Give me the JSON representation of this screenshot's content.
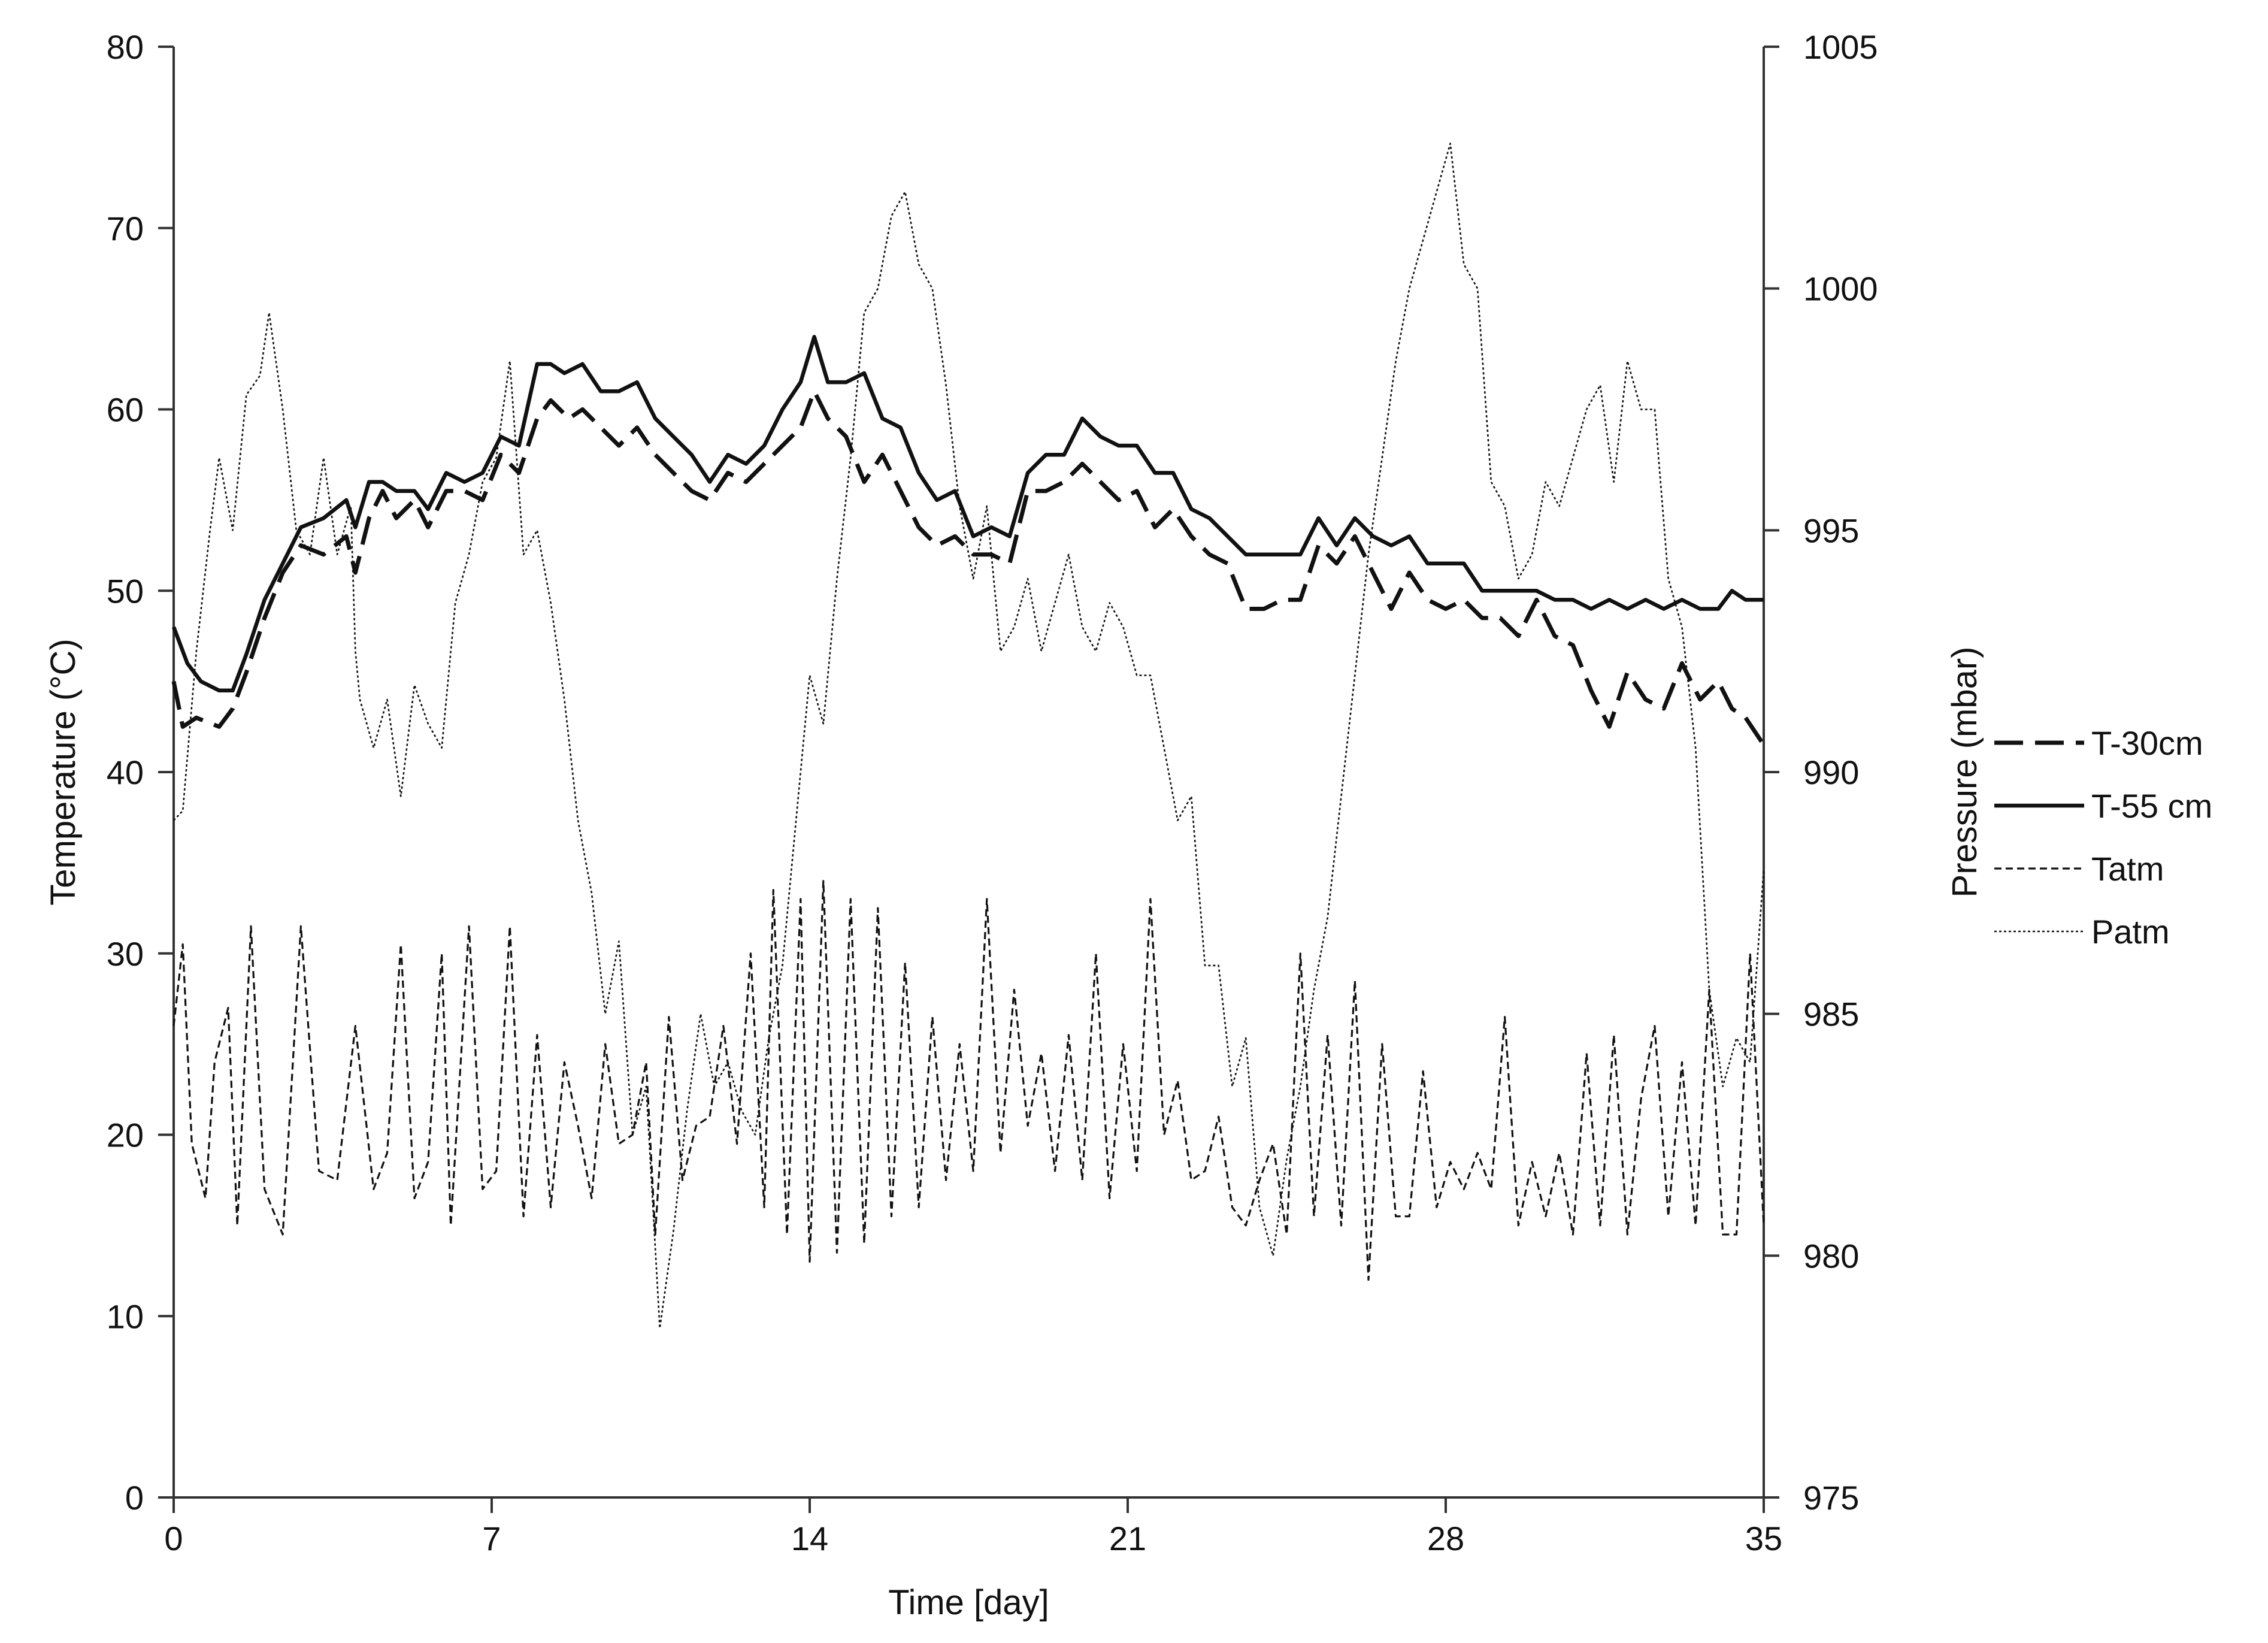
{
  "chart_data": {
    "type": "line",
    "xlabel": "Time [day]",
    "ylabel": "Temperature (°C)",
    "y2label": "Pressure (mbar)",
    "xlim": [
      0,
      35
    ],
    "ylim": [
      0,
      80
    ],
    "y2lim": [
      975,
      1005
    ],
    "x_ticks": [
      0,
      7,
      14,
      21,
      28,
      35
    ],
    "y_ticks": [
      0,
      10,
      20,
      30,
      40,
      50,
      60,
      70,
      80
    ],
    "y2_ticks": [
      975,
      980,
      985,
      990,
      995,
      1000,
      1005
    ],
    "x_tick_labels": [
      "0",
      "7",
      "14",
      "21",
      "28",
      "35"
    ],
    "y_tick_labels": [
      "0",
      "10",
      "20",
      "30",
      "40",
      "50",
      "60",
      "70",
      "80"
    ],
    "y2_tick_labels": [
      "975",
      "980",
      "985",
      "990",
      "995",
      "1000",
      "1005"
    ],
    "grid": false,
    "legend_position": "right",
    "series": [
      {
        "name": "T-30cm",
        "axis": "left",
        "style": "long-dash",
        "x": [
          0,
          0.2,
          0.5,
          1.0,
          1.3,
          1.6,
          2.0,
          2.4,
          2.8,
          3.3,
          3.8,
          4.0,
          4.3,
          4.6,
          4.9,
          5.3,
          5.6,
          6.0,
          6.4,
          6.8,
          7.2,
          7.6,
          8.0,
          8.3,
          8.7,
          9.0,
          9.4,
          9.8,
          10.2,
          10.6,
          11.0,
          11.4,
          11.8,
          12.2,
          12.6,
          13.0,
          13.4,
          13.8,
          14.1,
          14.4,
          14.8,
          15.2,
          15.6,
          16.0,
          16.4,
          16.8,
          17.2,
          17.6,
          18.0,
          18.4,
          18.8,
          19.2,
          19.6,
          20.0,
          20.4,
          20.8,
          21.2,
          21.6,
          22.0,
          22.4,
          22.8,
          23.2,
          23.6,
          24.0,
          24.4,
          24.8,
          25.2,
          25.6,
          26.0,
          26.4,
          26.8,
          27.2,
          27.6,
          28.0,
          28.4,
          28.8,
          29.2,
          29.6,
          30.0,
          30.4,
          30.8,
          31.2,
          31.6,
          32.0,
          32.4,
          32.8,
          33.2,
          33.6,
          34.0,
          34.3,
          34.6,
          35.0
        ],
        "y": [
          45.0,
          42.5,
          43.0,
          42.5,
          43.5,
          45.5,
          48.5,
          51.0,
          52.5,
          52.0,
          53.0,
          51.0,
          54.0,
          55.5,
          54.0,
          55.0,
          53.5,
          55.5,
          55.5,
          55.0,
          57.5,
          56.5,
          59.5,
          60.5,
          59.5,
          60.0,
          59.0,
          58.0,
          59.0,
          57.5,
          56.5,
          55.5,
          55.0,
          56.5,
          56.0,
          57.0,
          58.0,
          59.0,
          61.0,
          59.5,
          58.5,
          56.0,
          57.5,
          55.5,
          53.5,
          52.5,
          53.0,
          52.0,
          52.0,
          51.5,
          55.5,
          55.5,
          56.0,
          57.0,
          56.0,
          55.0,
          55.5,
          53.5,
          54.5,
          53.0,
          52.0,
          51.5,
          49.0,
          49.0,
          49.5,
          49.5,
          52.5,
          51.5,
          53.0,
          51.0,
          49.0,
          51.0,
          49.5,
          49.0,
          49.5,
          48.5,
          48.5,
          47.5,
          49.5,
          47.5,
          47.0,
          44.5,
          42.5,
          45.5,
          44.0,
          43.5,
          46.0,
          44.0,
          45.0,
          43.5,
          43.0,
          41.5
        ]
      },
      {
        "name": "T-55 cm",
        "axis": "left",
        "style": "solid",
        "x": [
          0,
          0.3,
          0.6,
          1.0,
          1.3,
          1.6,
          2.0,
          2.4,
          2.8,
          3.3,
          3.8,
          4.0,
          4.3,
          4.6,
          4.9,
          5.3,
          5.6,
          6.0,
          6.4,
          6.8,
          7.2,
          7.6,
          8.0,
          8.3,
          8.6,
          9.0,
          9.4,
          9.8,
          10.2,
          10.6,
          11.0,
          11.4,
          11.8,
          12.2,
          12.6,
          13.0,
          13.4,
          13.8,
          14.1,
          14.4,
          14.8,
          15.2,
          15.6,
          16.0,
          16.4,
          16.8,
          17.2,
          17.6,
          18.0,
          18.4,
          18.8,
          19.2,
          19.6,
          20.0,
          20.4,
          20.8,
          21.2,
          21.6,
          22.0,
          22.4,
          22.8,
          23.2,
          23.6,
          24.0,
          24.4,
          24.8,
          25.2,
          25.6,
          26.0,
          26.4,
          26.8,
          27.2,
          27.6,
          28.0,
          28.4,
          28.8,
          29.2,
          29.6,
          30.0,
          30.4,
          30.8,
          31.2,
          31.6,
          32.0,
          32.4,
          32.8,
          33.2,
          33.6,
          34.0,
          34.3,
          34.6,
          35.0
        ],
        "y": [
          48.0,
          46.0,
          45.0,
          44.5,
          44.5,
          46.5,
          49.5,
          51.5,
          53.5,
          54.0,
          55.0,
          53.5,
          56.0,
          56.0,
          55.5,
          55.5,
          54.5,
          56.5,
          56.0,
          56.5,
          58.5,
          58.0,
          62.5,
          62.5,
          62.0,
          62.5,
          61.0,
          61.0,
          61.5,
          59.5,
          58.5,
          57.5,
          56.0,
          57.5,
          57.0,
          58.0,
          60.0,
          61.5,
          64.0,
          61.5,
          61.5,
          62.0,
          59.5,
          59.0,
          56.5,
          55.0,
          55.5,
          53.0,
          53.5,
          53.0,
          56.5,
          57.5,
          57.5,
          59.5,
          58.5,
          58.0,
          58.0,
          56.5,
          56.5,
          54.5,
          54.0,
          53.0,
          52.0,
          52.0,
          52.0,
          52.0,
          54.0,
          52.5,
          54.0,
          53.0,
          52.5,
          53.0,
          51.5,
          51.5,
          51.5,
          50.0,
          50.0,
          50.0,
          50.0,
          49.5,
          49.5,
          49.0,
          49.5,
          49.0,
          49.5,
          49.0,
          49.5,
          49.0,
          49.0,
          50.0,
          49.5,
          49.5
        ]
      },
      {
        "name": "Tatm",
        "axis": "left",
        "style": "short-dash",
        "x": [
          0,
          0.2,
          0.4,
          0.7,
          0.9,
          1.2,
          1.4,
          1.7,
          2.0,
          2.4,
          2.8,
          3.2,
          3.6,
          4.0,
          4.4,
          4.7,
          5.0,
          5.3,
          5.6,
          5.9,
          6.1,
          6.5,
          6.8,
          7.1,
          7.4,
          7.7,
          8.0,
          8.3,
          8.6,
          8.9,
          9.2,
          9.5,
          9.8,
          10.1,
          10.4,
          10.6,
          10.9,
          11.2,
          11.5,
          11.8,
          12.1,
          12.4,
          12.7,
          13.0,
          13.2,
          13.5,
          13.8,
          14.0,
          14.3,
          14.6,
          14.9,
          15.2,
          15.5,
          15.8,
          16.1,
          16.4,
          16.7,
          17.0,
          17.3,
          17.6,
          17.9,
          18.2,
          18.5,
          18.8,
          19.1,
          19.4,
          19.7,
          20.0,
          20.3,
          20.6,
          20.9,
          21.2,
          21.5,
          21.8,
          22.1,
          22.4,
          22.7,
          23.0,
          23.3,
          23.6,
          23.9,
          24.2,
          24.5,
          24.8,
          25.1,
          25.4,
          25.7,
          26.0,
          26.3,
          26.6,
          26.9,
          27.2,
          27.5,
          27.8,
          28.1,
          28.4,
          28.7,
          29.0,
          29.3,
          29.6,
          29.9,
          30.2,
          30.5,
          30.8,
          31.1,
          31.4,
          31.7,
          32.0,
          32.3,
          32.6,
          32.9,
          33.2,
          33.5,
          33.8,
          34.1,
          34.4,
          34.7,
          35.0
        ],
        "y": [
          26.0,
          30.5,
          19.5,
          16.5,
          24.0,
          27.0,
          15.0,
          31.5,
          17.0,
          14.5,
          31.5,
          18.0,
          17.5,
          26.0,
          17.0,
          19.0,
          30.5,
          16.5,
          18.5,
          30.0,
          15.0,
          31.5,
          17.0,
          18.0,
          31.5,
          15.5,
          25.5,
          16.0,
          24.0,
          20.5,
          16.5,
          25.0,
          19.5,
          20.0,
          24.0,
          14.5,
          26.5,
          17.5,
          20.5,
          21.0,
          26.0,
          19.5,
          30.0,
          16.0,
          33.5,
          14.5,
          33.0,
          13.0,
          34.0,
          13.5,
          33.0,
          14.0,
          32.5,
          15.5,
          29.5,
          16.0,
          26.5,
          17.5,
          25.0,
          18.0,
          33.0,
          19.0,
          28.0,
          20.5,
          24.5,
          18.0,
          25.5,
          17.5,
          30.0,
          16.5,
          25.0,
          18.0,
          33.0,
          20.0,
          23.0,
          17.5,
          18.0,
          21.0,
          16.0,
          15.0,
          17.5,
          19.5,
          14.5,
          30.0,
          15.5,
          25.5,
          15.0,
          28.5,
          12.0,
          25.0,
          15.5,
          15.5,
          23.5,
          16.0,
          18.5,
          17.0,
          19.0,
          17.0,
          26.5,
          15.0,
          18.5,
          15.5,
          19.0,
          14.5,
          24.5,
          15.0,
          25.5,
          14.5,
          22.0,
          26.0,
          15.5,
          24.0,
          15.0,
          28.0,
          14.5,
          14.5,
          30.0,
          15.0
        ]
      },
      {
        "name": "Patm",
        "axis": "right",
        "style": "dotted",
        "x": [
          0,
          0.2,
          0.5,
          0.8,
          1.0,
          1.3,
          1.6,
          1.9,
          2.1,
          2.4,
          2.7,
          3.0,
          3.3,
          3.6,
          3.9,
          4.0,
          4.1,
          4.4,
          4.7,
          5.0,
          5.3,
          5.6,
          5.9,
          6.2,
          6.5,
          6.8,
          7.1,
          7.4,
          7.7,
          8.0,
          8.3,
          8.6,
          8.9,
          9.2,
          9.5,
          9.8,
          10.1,
          10.4,
          10.7,
          11.0,
          11.3,
          11.6,
          11.9,
          12.2,
          12.5,
          12.8,
          13.1,
          13.4,
          13.7,
          14.0,
          14.3,
          14.6,
          14.9,
          15.2,
          15.5,
          15.8,
          16.1,
          16.4,
          16.7,
          17.0,
          17.3,
          17.6,
          17.9,
          18.2,
          18.5,
          18.8,
          19.1,
          19.4,
          19.7,
          20.0,
          20.3,
          20.6,
          20.9,
          21.2,
          21.5,
          21.8,
          22.1,
          22.4,
          22.7,
          23.0,
          23.3,
          23.6,
          23.9,
          24.2,
          24.5,
          24.8,
          25.1,
          25.4,
          25.7,
          26.0,
          26.3,
          26.6,
          26.9,
          27.2,
          27.5,
          27.8,
          28.1,
          28.4,
          28.7,
          29.0,
          29.3,
          29.6,
          29.9,
          30.2,
          30.5,
          30.8,
          31.1,
          31.4,
          31.7,
          32.0,
          32.3,
          32.6,
          32.9,
          33.2,
          33.5,
          33.8,
          34.1,
          34.4,
          34.7,
          35.0
        ],
        "y": [
          989.0,
          989.2,
          992.5,
          995.0,
          996.5,
          995.0,
          997.8,
          998.2,
          999.5,
          997.5,
          995.0,
          994.5,
          996.5,
          994.5,
          995.5,
          992.5,
          991.5,
          990.5,
          991.5,
          989.5,
          991.8,
          991.0,
          990.5,
          993.5,
          994.5,
          996.0,
          996.5,
          998.5,
          994.5,
          995.0,
          993.5,
          991.5,
          989.0,
          987.5,
          985.0,
          986.5,
          982.5,
          983.5,
          978.5,
          980.5,
          983.0,
          985.0,
          983.5,
          984.0,
          983.0,
          982.5,
          984.5,
          986.0,
          989.0,
          992.0,
          991.0,
          994.0,
          996.5,
          999.5,
          1000.0,
          1001.5,
          1002.0,
          1000.5,
          1000.0,
          998.0,
          995.5,
          994.0,
          995.5,
          992.5,
          993.0,
          994.0,
          992.5,
          993.5,
          994.5,
          993.0,
          992.5,
          993.5,
          993.0,
          992.0,
          992.0,
          990.5,
          989.0,
          989.5,
          986.0,
          986.0,
          983.5,
          984.5,
          981.0,
          980.0,
          982.0,
          983.5,
          985.5,
          987.0,
          989.5,
          992.0,
          994.5,
          996.5,
          998.5,
          1000.0,
          1001.0,
          1002.0,
          1003.0,
          1000.5,
          1000.0,
          996.0,
          995.5,
          994.0,
          994.5,
          996.0,
          995.5,
          996.5,
          997.5,
          998.0,
          996.0,
          998.5,
          997.5,
          997.5,
          994.0,
          993.0,
          990.5,
          985.5,
          983.5,
          984.5,
          984.0,
          988.0
        ]
      }
    ]
  }
}
